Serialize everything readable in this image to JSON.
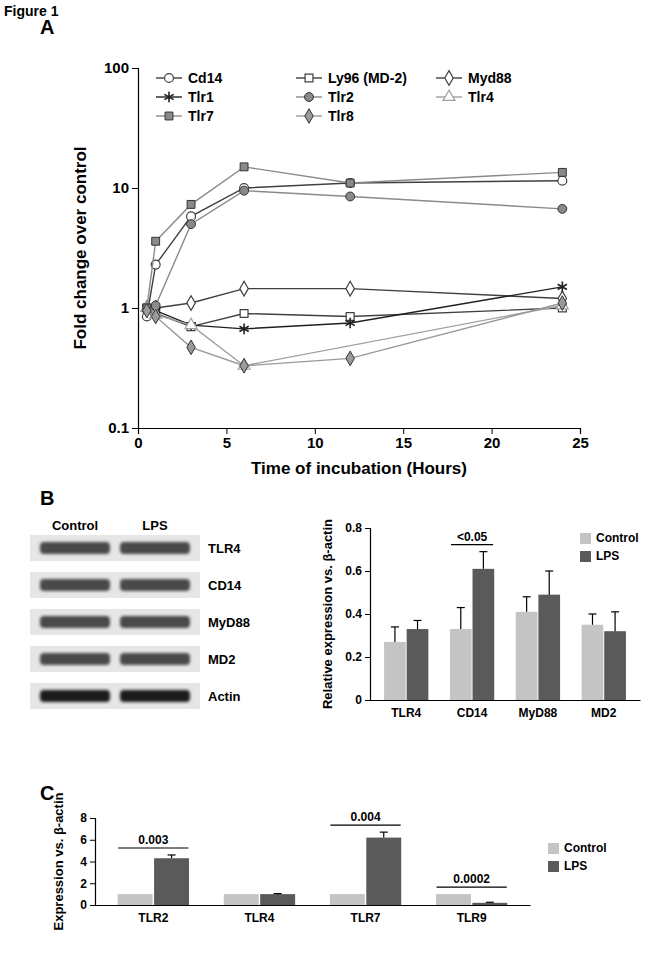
{
  "figure_title": "Figure 1",
  "blot": {
    "columns": [
      "Control",
      "LPS"
    ],
    "rows": [
      "TLR4",
      "CD14",
      "MyD88",
      "MD2",
      "Actin"
    ]
  },
  "chart_data": [
    {
      "type": "line",
      "title": "A",
      "x": [
        0.5,
        1,
        3,
        6,
        12,
        24
      ],
      "xlim": [
        0,
        25
      ],
      "xticks": [
        0,
        5,
        10,
        15,
        20,
        25
      ],
      "ylim": [
        0.1,
        100
      ],
      "yticks": [
        0.1,
        1,
        10,
        100
      ],
      "log": "y",
      "x_label": "Time of incubation (Hours)",
      "y_label": "Fold change over control",
      "legend": "top",
      "series": [
        {
          "name": "Cd14",
          "color": "#404040",
          "marker": "open-circle",
          "values": [
            0.85,
            2.3,
            5.8,
            10,
            11,
            11.5
          ]
        },
        {
          "name": "Ly96 (MD-2)",
          "color": "#404040",
          "marker": "open-square",
          "values": [
            1.0,
            0.9,
            0.7,
            0.9,
            0.85,
            1.0
          ]
        },
        {
          "name": "Myd88",
          "color": "#404040",
          "marker": "open-diamond",
          "values": [
            1.0,
            1.0,
            1.1,
            1.45,
            1.45,
            1.2
          ]
        },
        {
          "name": "Tlr1",
          "color": "#202020",
          "marker": "asterisk",
          "values": [
            1.0,
            0.95,
            0.72,
            0.67,
            0.75,
            1.5
          ]
        },
        {
          "name": "Tlr2",
          "color": "#8a8a8a",
          "marker": "circle",
          "values": [
            1.0,
            1.05,
            5.0,
            9.5,
            8.5,
            6.7
          ]
        },
        {
          "name": "Tlr4",
          "color": "#a0a0a0",
          "marker": "open-triangle",
          "x": [
            0.5,
            1,
            3,
            6,
            24
          ],
          "values": [
            1.0,
            0.88,
            0.72,
            0.33,
            1.05
          ]
        },
        {
          "name": "Tlr7",
          "color": "#8a8a8a",
          "marker": "square",
          "values": [
            1.0,
            3.6,
            7.3,
            15,
            11,
            13.5
          ]
        },
        {
          "name": "Tlr8",
          "color": "#9a9a9a",
          "marker": "diamond",
          "values": [
            0.95,
            0.85,
            0.47,
            0.33,
            0.38,
            1.1
          ]
        }
      ]
    },
    {
      "type": "bar",
      "title": "B",
      "categories": [
        "TLR4",
        "CD14",
        "MyD88",
        "MD2"
      ],
      "ylim": [
        0,
        0.8
      ],
      "yticks": [
        0,
        0.2,
        0.4,
        0.6,
        0.8
      ],
      "y_label": "Relative expression vs. β-actin",
      "legend": "top-right",
      "series": [
        {
          "name": "Control",
          "color": "#c4c4c4",
          "values": [
            0.27,
            0.33,
            0.41,
            0.35
          ],
          "errors": [
            0.07,
            0.1,
            0.07,
            0.05
          ]
        },
        {
          "name": "LPS",
          "color": "#5a5a5a",
          "values": [
            0.33,
            0.61,
            0.49,
            0.32
          ],
          "errors": [
            0.04,
            0.08,
            0.11,
            0.09
          ]
        }
      ],
      "annotations": [
        {
          "category": "CD14",
          "text": "<0.05"
        }
      ]
    },
    {
      "type": "bar",
      "title": "C",
      "categories": [
        "TLR2",
        "TLR4",
        "TLR7",
        "TLR9"
      ],
      "ylim": [
        0,
        8
      ],
      "yticks": [
        0,
        2,
        4,
        6,
        8
      ],
      "y_label": "Expression vs. β-actin",
      "legend": "right",
      "series": [
        {
          "name": "Control",
          "color": "#c4c4c4",
          "values": [
            1,
            1,
            1,
            1
          ]
        },
        {
          "name": "LPS",
          "color": "#5a5a5a",
          "values": [
            4.3,
            1.0,
            6.2,
            0.2
          ],
          "errors": [
            0.3,
            0.05,
            0.5,
            0.05
          ]
        }
      ],
      "annotations": [
        {
          "category": "TLR2",
          "text": "0.003"
        },
        {
          "category": "TLR7",
          "text": "0.004"
        },
        {
          "category": "TLR9",
          "text": "0.0002"
        }
      ]
    }
  ]
}
